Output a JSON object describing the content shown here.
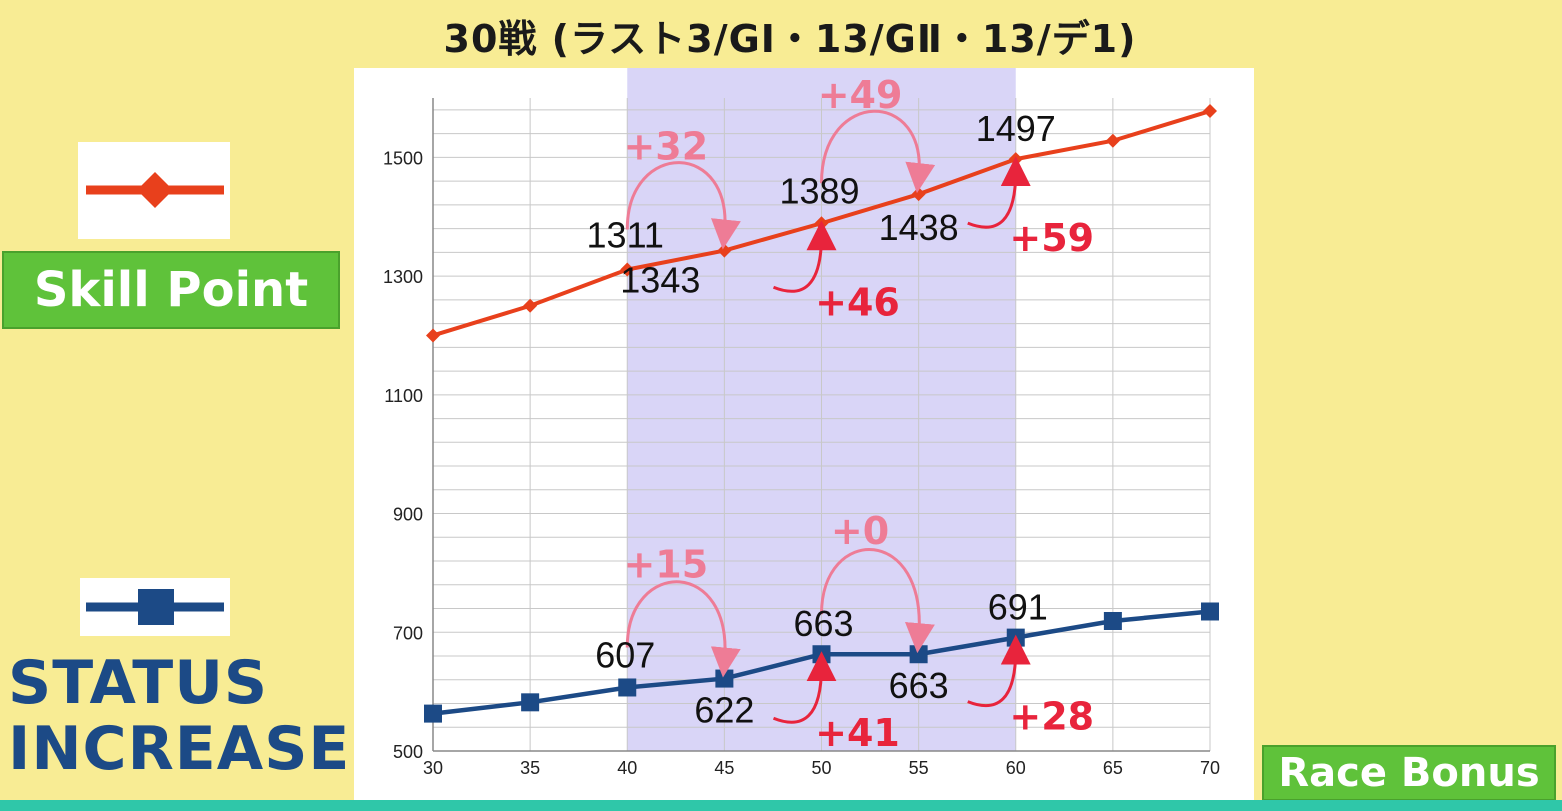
{
  "title": "30戦 (ラスト3/GⅠ・13/GⅡ・13/デ1)",
  "legend": {
    "skill": {
      "label": "Skill Point",
      "color": "#e8401c",
      "marker": "diamond"
    },
    "status": {
      "label": "STATUS INCREASE",
      "color": "#1c4a86",
      "marker": "square"
    },
    "race_bonus": {
      "label": "Race Bonus"
    }
  },
  "chart_data": {
    "type": "line",
    "x": [
      30,
      35,
      40,
      45,
      50,
      55,
      60,
      65,
      70
    ],
    "xlim": [
      30,
      70
    ],
    "ylim": [
      500,
      1600
    ],
    "x_ticks": [
      "30",
      "35",
      "40",
      "45",
      "50",
      "55",
      "60",
      "65",
      "70"
    ],
    "y_ticks": [
      "500",
      "700",
      "900",
      "1100",
      "1300",
      "1500"
    ],
    "highlight_range": [
      40,
      60
    ],
    "grid": "on",
    "series": [
      {
        "name": "Skill Point",
        "color": "#e8401c",
        "values": [
          1200,
          1250,
          1311,
          1343,
          1389,
          1438,
          1497,
          1528,
          1578
        ]
      },
      {
        "name": "STATUS INCREASE",
        "color": "#1c4a86",
        "values": [
          563,
          582,
          607,
          622,
          663,
          663,
          691,
          719,
          735
        ]
      }
    ],
    "data_labels": [
      {
        "series": 0,
        "x": 40,
        "text": "1311"
      },
      {
        "series": 0,
        "x": 45,
        "text": "1343"
      },
      {
        "series": 0,
        "x": 50,
        "text": "1389"
      },
      {
        "series": 0,
        "x": 55,
        "text": "1438"
      },
      {
        "series": 0,
        "x": 60,
        "text": "1497"
      },
      {
        "series": 1,
        "x": 40,
        "text": "607"
      },
      {
        "series": 1,
        "x": 45,
        "text": "622"
      },
      {
        "series": 1,
        "x": 50,
        "text": "663"
      },
      {
        "series": 1,
        "x": 55,
        "text": "663"
      },
      {
        "series": 1,
        "x": 60,
        "text": "691"
      }
    ],
    "annotations": [
      {
        "series": 0,
        "from_x": 40,
        "to_x": 45,
        "text": "+32",
        "color": "#ee7c96"
      },
      {
        "series": 0,
        "from_x": 50,
        "to_x": 55,
        "text": "+49",
        "color": "#ee7c96"
      },
      {
        "series": 0,
        "to_x": 50,
        "text": "+46",
        "color": "#e8243c"
      },
      {
        "series": 0,
        "to_x": 60,
        "text": "+59",
        "color": "#e8243c"
      },
      {
        "series": 1,
        "from_x": 40,
        "to_x": 45,
        "text": "+15",
        "color": "#ee7c96"
      },
      {
        "series": 1,
        "from_x": 50,
        "to_x": 55,
        "text": "+0",
        "color": "#ee7c96"
      },
      {
        "series": 1,
        "to_x": 50,
        "text": "+41",
        "color": "#e8243c"
      },
      {
        "series": 1,
        "to_x": 60,
        "text": "+28",
        "color": "#e8243c"
      }
    ]
  }
}
